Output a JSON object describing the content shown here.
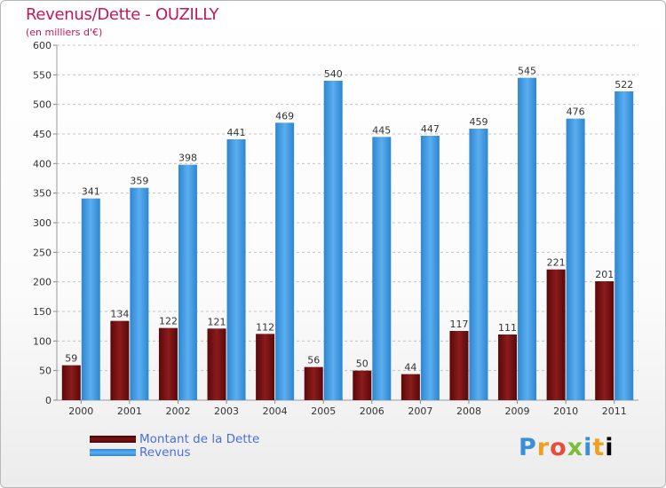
{
  "chart_data": {
    "type": "bar",
    "title": "Revenus/Dette - OUZILLY",
    "subtitle": "(en milliers d'€)",
    "xlabel": "",
    "ylabel": "",
    "ylim": [
      0,
      600
    ],
    "yticks": [
      0,
      50,
      100,
      150,
      200,
      250,
      300,
      350,
      400,
      450,
      500,
      550,
      600
    ],
    "grid": true,
    "legend_position": "bottom-left",
    "categories": [
      "2000",
      "2001",
      "2002",
      "2003",
      "2004",
      "2005",
      "2006",
      "2007",
      "2008",
      "2009",
      "2010",
      "2011"
    ],
    "series": [
      {
        "name": "Montant de la Dette",
        "color": "#7a1414",
        "values": [
          59,
          134,
          122,
          121,
          112,
          56,
          50,
          44,
          117,
          111,
          221,
          201
        ]
      },
      {
        "name": "Revenus",
        "color": "#3f9be2",
        "values": [
          341,
          359,
          398,
          441,
          469,
          540,
          445,
          447,
          459,
          545,
          476,
          522
        ]
      }
    ]
  },
  "brand": {
    "letters": [
      "P",
      "r",
      "o",
      "x",
      "i",
      "t",
      "i"
    ]
  }
}
